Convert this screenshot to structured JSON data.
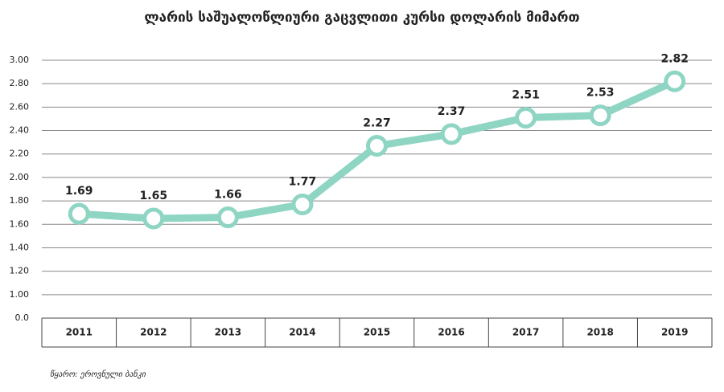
{
  "chart_data": {
    "type": "line",
    "title": "ლარის საშუალოწლიური გაცვლითი კურსი დოლარის მიმართ",
    "source": "წყარო: ეროვნული ბანკი",
    "categories": [
      "2011",
      "2012",
      "2013",
      "2014",
      "2015",
      "2016",
      "2017",
      "2018",
      "2019"
    ],
    "values": [
      1.69,
      1.65,
      1.66,
      1.77,
      2.27,
      2.37,
      2.51,
      2.53,
      2.82
    ],
    "color": "#8fd5c3",
    "ylim": [
      0,
      3
    ],
    "yticks": [
      {
        "value": 0,
        "label": "0.0"
      },
      {
        "value": 1,
        "label": "1.00"
      },
      {
        "value": 1.2,
        "label": "1.20"
      },
      {
        "value": 1.4,
        "label": "1.40"
      },
      {
        "value": 1.6,
        "label": "1.60"
      },
      {
        "value": 1.8,
        "label": "1.80"
      },
      {
        "value": 2,
        "label": "2.00"
      },
      {
        "value": 2.2,
        "label": "2.20"
      },
      {
        "value": 2.4,
        "label": "2.40"
      },
      {
        "value": 2.6,
        "label": "2.60"
      },
      {
        "value": 2.8,
        "label": "2.80"
      },
      {
        "value": 3,
        "label": "3.00"
      }
    ],
    "grid": true
  }
}
